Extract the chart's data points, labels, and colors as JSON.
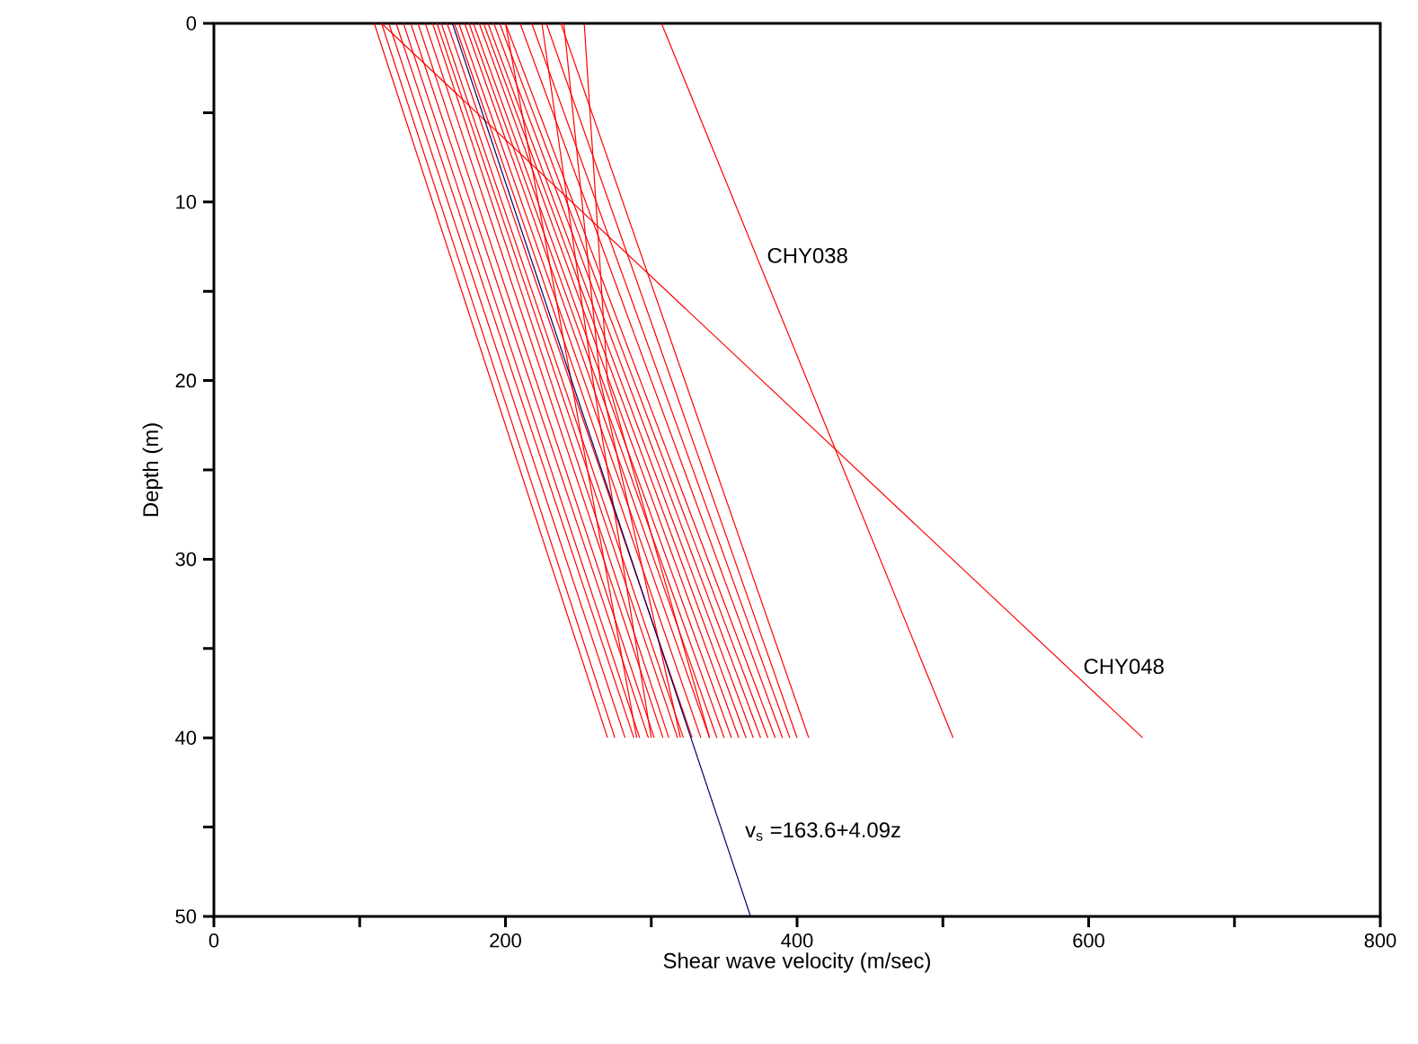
{
  "chart_data": {
    "type": "line",
    "xlabel": "Shear wave velocity (m/sec)",
    "ylabel": "Depth (m)",
    "xlim": [
      0,
      800
    ],
    "ylim": [
      50,
      0
    ],
    "xticks": [
      0,
      {
        "value": 100,
        "label": null
      },
      200,
      {
        "value": 300,
        "label": null
      },
      400,
      {
        "value": 500,
        "label": null
      },
      600,
      {
        "value": 700,
        "label": null
      },
      800
    ],
    "yticks": [
      0,
      {
        "value": 5,
        "label": null
      },
      10,
      {
        "value": 15,
        "label": null
      },
      20,
      {
        "value": 25,
        "label": null
      },
      30,
      {
        "value": 35,
        "label": null
      },
      40,
      {
        "value": 45,
        "label": null
      },
      50
    ],
    "grid": false,
    "marker": "none",
    "line_style": "solid",
    "series": [
      {
        "color": "#ff0000",
        "x": [
          110,
          270
        ],
        "values": [
          0,
          40
        ]
      },
      {
        "color": "#ff0000",
        "x": [
          115,
          275
        ],
        "values": [
          0,
          40
        ]
      },
      {
        "color": "#ff0000",
        "x": [
          120,
          282
        ],
        "values": [
          0,
          40
        ]
      },
      {
        "color": "#ff0000",
        "x": [
          125,
          288
        ],
        "values": [
          0,
          40
        ]
      },
      {
        "color": "#ff0000",
        "x": [
          130,
          292
        ],
        "values": [
          0,
          40
        ]
      },
      {
        "color": "#ff0000",
        "x": [
          135,
          298
        ],
        "values": [
          0,
          40
        ]
      },
      {
        "color": "#ff0000",
        "x": [
          140,
          302
        ],
        "values": [
          0,
          40
        ]
      },
      {
        "color": "#ff0000",
        "x": [
          145,
          308
        ],
        "values": [
          0,
          40
        ]
      },
      {
        "color": "#ff0000",
        "x": [
          150,
          312
        ],
        "values": [
          0,
          40
        ]
      },
      {
        "color": "#ff0000",
        "x": [
          153,
          318
        ],
        "values": [
          0,
          40
        ]
      },
      {
        "color": "#ff0000",
        "x": [
          156,
          322
        ],
        "values": [
          0,
          40
        ]
      },
      {
        "color": "#ff0000",
        "x": [
          160,
          328
        ],
        "values": [
          0,
          40
        ]
      },
      {
        "color": "#ff0000",
        "x": [
          165,
          334
        ],
        "values": [
          0,
          40
        ]
      },
      {
        "color": "#ff0000",
        "x": [
          168,
          340
        ],
        "values": [
          0,
          40
        ]
      },
      {
        "color": "#ff0000",
        "x": [
          172,
          345
        ],
        "values": [
          0,
          40
        ]
      },
      {
        "color": "#ff0000",
        "x": [
          175,
          350
        ],
        "values": [
          0,
          40
        ]
      },
      {
        "color": "#ff0000",
        "x": [
          178,
          355
        ],
        "values": [
          0,
          40
        ]
      },
      {
        "color": "#ff0000",
        "x": [
          182,
          360
        ],
        "values": [
          0,
          40
        ]
      },
      {
        "color": "#ff0000",
        "x": [
          185,
          365
        ],
        "values": [
          0,
          40
        ]
      },
      {
        "color": "#ff0000",
        "x": [
          188,
          370
        ],
        "values": [
          0,
          40
        ]
      },
      {
        "color": "#ff0000",
        "x": [
          192,
          375
        ],
        "values": [
          0,
          40
        ]
      },
      {
        "color": "#ff0000",
        "x": [
          196,
          380
        ],
        "values": [
          0,
          40
        ]
      },
      {
        "color": "#ff0000",
        "x": [
          200,
          385
        ],
        "values": [
          0,
          40
        ]
      },
      {
        "color": "#ff0000",
        "x": [
          210,
          390
        ],
        "values": [
          0,
          40
        ]
      },
      {
        "color": "#ff0000",
        "x": [
          218,
          395
        ],
        "values": [
          0,
          40
        ]
      },
      {
        "color": "#ff0000",
        "x": [
          228,
          400
        ],
        "values": [
          0,
          40
        ]
      },
      {
        "color": "#ff0000",
        "x": [
          238,
          408
        ],
        "values": [
          0,
          40
        ]
      },
      {
        "color": "#ff0000",
        "x": [
          200,
          290
        ],
        "values": [
          0,
          40
        ]
      },
      {
        "color": "#ff0000",
        "x": [
          225,
          260,
          300
        ],
        "values": [
          0,
          20,
          40
        ]
      },
      {
        "color": "#ff0000",
        "x": [
          240,
          265,
          320
        ],
        "values": [
          0,
          20,
          40
        ]
      },
      {
        "color": "#ff0000",
        "x": [
          254,
          270,
          340
        ],
        "values": [
          0,
          20,
          40
        ]
      },
      {
        "color": "#ff0000",
        "x": [
          307,
          507
        ],
        "values": [
          0,
          40
        ]
      },
      {
        "color": "#ff0000",
        "x": [
          115,
          637
        ],
        "values": [
          0,
          40
        ]
      },
      {
        "color": "#000066",
        "x": [
          163.6,
          368.1
        ],
        "values": [
          0,
          50
        ]
      }
    ],
    "annotations": [
      {
        "text": "CHY038",
        "x": 375,
        "y": 13
      },
      {
        "text": "CHY048",
        "x": 592,
        "y": 36
      },
      "v$_{s}$ =163.6+4.09z"
    ]
  }
}
